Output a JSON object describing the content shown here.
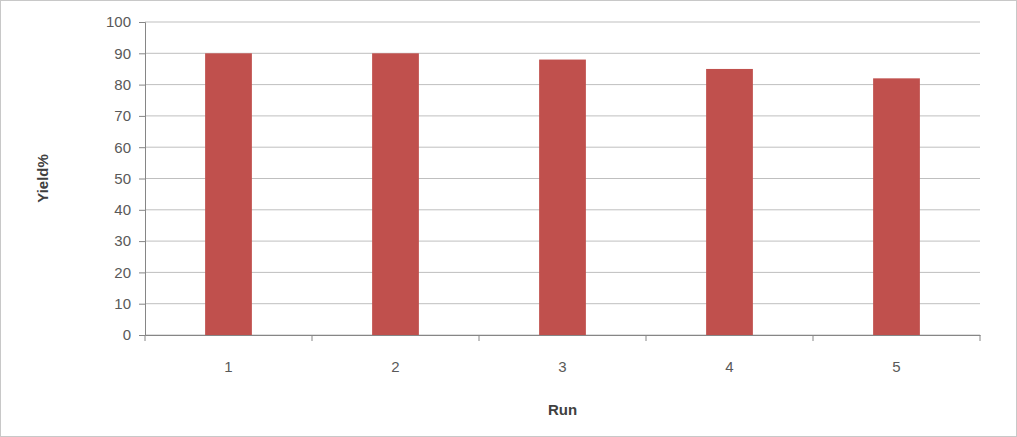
{
  "chart_data": {
    "type": "bar",
    "x_label": "Run",
    "y_label": "Yield%",
    "categories": [
      "1",
      "2",
      "3",
      "4",
      "5"
    ],
    "values": [
      90,
      90,
      88,
      85,
      82
    ],
    "color": "#c0504d",
    "ylim": [
      0,
      100
    ],
    "yticks": [
      0,
      10,
      20,
      30,
      40,
      50,
      60,
      70,
      80,
      90,
      100
    ],
    "grid": true
  }
}
